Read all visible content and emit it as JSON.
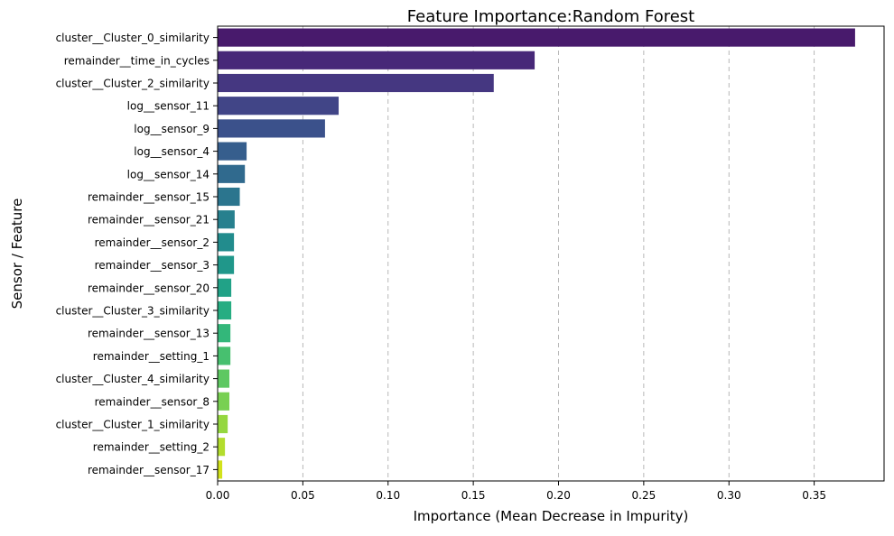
{
  "chart_data": {
    "type": "bar",
    "orientation": "horizontal",
    "title": "Feature Importance:Random Forest",
    "xlabel": "Importance (Mean Decrease in Impurity)",
    "ylabel": "Sensor / Feature",
    "xlim": [
      0,
      0.391
    ],
    "xticks": [
      0.0,
      0.05,
      0.1,
      0.15,
      0.2,
      0.25,
      0.3,
      0.35
    ],
    "xtick_labels": [
      "0.00",
      "0.05",
      "0.10",
      "0.15",
      "0.20",
      "0.25",
      "0.30",
      "0.35"
    ],
    "grid": "x-axis dashed",
    "palette": "viridis",
    "categories": [
      "cluster__Cluster_0_similarity",
      "remainder__time_in_cycles",
      "cluster__Cluster_2_similarity",
      "log__sensor_11",
      "log__sensor_9",
      "log__sensor_4",
      "log__sensor_14",
      "remainder__sensor_15",
      "remainder__sensor_21",
      "remainder__sensor_2",
      "remainder__sensor_3",
      "remainder__sensor_20",
      "cluster__Cluster_3_similarity",
      "remainder__sensor_13",
      "remainder__setting_1",
      "cluster__Cluster_4_similarity",
      "remainder__sensor_8",
      "cluster__Cluster_1_similarity",
      "remainder__setting_2",
      "remainder__sensor_17"
    ],
    "values": [
      0.374,
      0.186,
      0.162,
      0.071,
      0.063,
      0.017,
      0.016,
      0.013,
      0.01,
      0.0096,
      0.0096,
      0.008,
      0.008,
      0.0075,
      0.0075,
      0.0069,
      0.0069,
      0.0059,
      0.0043,
      0.0027
    ]
  }
}
